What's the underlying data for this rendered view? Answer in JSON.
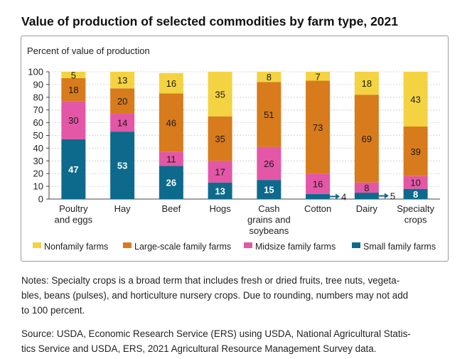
{
  "title": "Value of production of selected commodities by farm type, 2021",
  "notes": "Notes: Specialty crops is a broad term that includes fresh or dried fruits, tree nuts, vegeta-\nbles, beans (pulses), and horticulture nursery crops. Due to rounding, numbers may not add\nto 100 percent.",
  "source": "Source: USDA, Economic Research Service (ERS) using USDA, National Agricultural Statis-\ntics Service and USDA, ERS, 2021 Agricultural Resource Management Survey data.",
  "chart_data": {
    "type": "bar",
    "stacked": true,
    "ylabel": "Percent of value of production",
    "xlabel": "",
    "ylim": [
      0,
      100
    ],
    "yticks": [
      0,
      10,
      20,
      30,
      40,
      50,
      60,
      70,
      80,
      90,
      100
    ],
    "grid": true,
    "legend_position": "bottom",
    "categories": [
      [
        "Poultry",
        "and eggs"
      ],
      [
        "Hay"
      ],
      [
        "Beef"
      ],
      [
        "Hogs"
      ],
      [
        "Cash",
        "grains and",
        "soybeans"
      ],
      [
        "Cotton"
      ],
      [
        "Dairy"
      ],
      [
        "Specialty",
        "crops"
      ]
    ],
    "series": [
      {
        "name": "Small family farms",
        "color": "#0e6a8c",
        "label_color": "#ffffff",
        "values": [
          47,
          53,
          26,
          13,
          15,
          4,
          5,
          8
        ]
      },
      {
        "name": "Midsize family farms",
        "color": "#e357a6",
        "label_color": "#1a1a1a",
        "values": [
          30,
          14,
          11,
          17,
          26,
          16,
          8,
          10
        ]
      },
      {
        "name": "Large-scale family farms",
        "color": "#d87b1c",
        "label_color": "#1a1a1a",
        "values": [
          18,
          20,
          46,
          35,
          51,
          73,
          69,
          39
        ]
      },
      {
        "name": "Nonfamily farms",
        "color": "#f3d341",
        "label_color": "#1a1a1a",
        "values": [
          5,
          13,
          16,
          35,
          8,
          7,
          18,
          43
        ]
      }
    ],
    "legend_order": [
      "Nonfamily farms",
      "Large-scale family farms",
      "Midsize family farms",
      "Small family farms"
    ],
    "outside_labels": [
      {
        "category_index": 5,
        "series": "Small family farms",
        "text": "4"
      },
      {
        "category_index": 6,
        "series": "Small family farms",
        "text": "5"
      }
    ]
  }
}
